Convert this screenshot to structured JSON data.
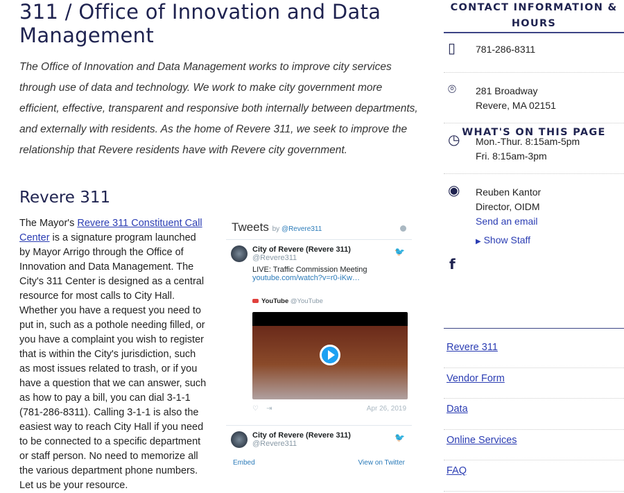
{
  "title": "311 / Office of Innovation and Data Management",
  "intro": "The Office of Innovation and Data Management works to improve city services through use of data and technology. We work to make city government more efficient, effective, transparent and responsive both internally between departments, and externally with residents. As the home of Revere 311, we seek to improve the relationship that Revere residents have with Revere city government.",
  "section_title": "Revere 311",
  "body": {
    "pre": "The Mayor's ",
    "link": "Revere 311 Constituent Call Center",
    "post": " is a signature program launched by Mayor Arrigo through the Office of Innovation and Data Management. The City's 311 Center is designed as a central resource for most calls to City Hall. Whether you have a request you need to put in, such as a pothole needing filled, or you have a complaint you wish to register that is within the City's jurisdiction, such as most issues related to trash, or if you have a question that we can answer, such as how to pay a bill, you can dial 3-1-1 (781-286-8311). Calling 3-1-1 is also the easiest way to reach City Hall if you need to be connected to a specific department or staff person. No need to memorize all the various department phone numbers. Let us be your resource."
  },
  "twitter": {
    "title": "Tweets",
    "by": "by",
    "handle": "@Revere311",
    "tweets": [
      {
        "name": "City of Revere (Revere 311)",
        "handle": "@Revere311",
        "text": "LIVE: Traffic Commission Meeting",
        "link": "youtube.com/watch?v=r0-iKw…",
        "source_name": "YouTube",
        "source_handle": "@YouTube",
        "date": "Apr 26, 2019"
      },
      {
        "name": "City of Revere (Revere 311)",
        "handle": "@Revere311"
      }
    ],
    "embed": "Embed",
    "view": "View on Twitter"
  },
  "contact": {
    "heading": "CONTACT INFORMATION & HOURS",
    "phone": "781-286-8311",
    "address1": "281 Broadway",
    "address2": "Revere, MA 02151",
    "hours1": "Mon.-Thur. 8:15am-5pm",
    "hours2": "Fri. 8:15am-3pm",
    "person": "Reuben Kantor",
    "role": "Director, OIDM",
    "email": "Send an email",
    "staff": "Show Staff"
  },
  "toc": {
    "heading": "WHAT'S ON THIS PAGE",
    "items": [
      "Revere 311",
      "Vendor Form",
      "Data",
      "Online Services",
      "FAQ"
    ]
  },
  "colors": {
    "navy": "#1f2350",
    "link": "#2b3db3",
    "twitter_blue": "#2b7bb9"
  }
}
